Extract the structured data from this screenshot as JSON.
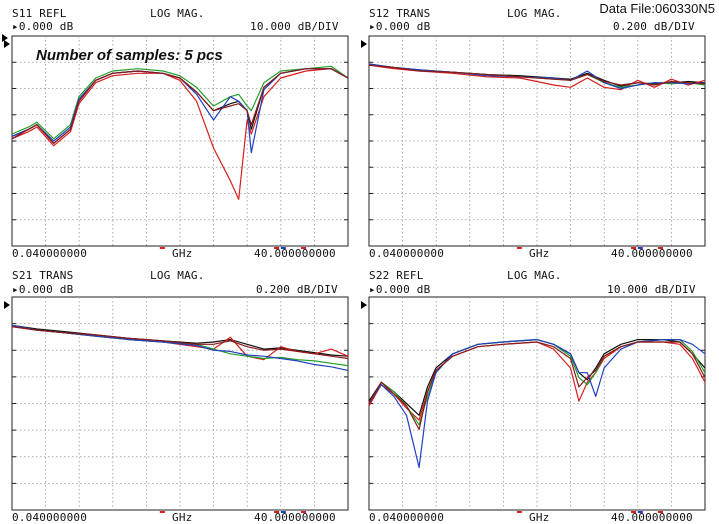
{
  "data_file": "Data File:060330N5",
  "note": "Number of samples: 5 pcs",
  "series_colors": [
    "#111111",
    "#d81e1e",
    "#22a02c",
    "#2040c0",
    "#8a1a1a"
  ],
  "chart_data": [
    {
      "type": "line",
      "param": "S11 REFL",
      "format": "LOG MAG.",
      "ref": "▸0.000 dB",
      "scale": "10.000 dB/DIV",
      "x_start": "0.040000000",
      "x_unit": "GHz",
      "x_stop": "40.000000000",
      "xlim": [
        0.04,
        40
      ],
      "ylim": [
        -80,
        10
      ],
      "x": [
        0.04,
        2,
        3,
        5,
        7,
        8,
        10,
        12,
        15,
        18,
        20,
        22,
        24,
        26,
        27,
        28,
        28.5,
        30,
        32,
        35,
        38,
        40
      ],
      "series": [
        {
          "color": "#111111",
          "values": [
            -33,
            -30,
            -28,
            -36,
            -30,
            -18,
            -9,
            -6,
            -5,
            -6,
            -8,
            -14,
            -22,
            -19,
            -18,
            -22,
            -30,
            -12,
            -6,
            -4,
            -4,
            -8
          ]
        },
        {
          "color": "#d81e1e",
          "values": [
            -34,
            -31,
            -29,
            -37,
            -31,
            -19,
            -10,
            -7,
            -6,
            -6,
            -9,
            -18,
            -38,
            -52,
            -60,
            -26,
            -32,
            -16,
            -8,
            -5,
            -4,
            -8
          ]
        },
        {
          "color": "#22a02c",
          "values": [
            -32,
            -29,
            -27,
            -34,
            -28,
            -16,
            -8,
            -5,
            -4,
            -5,
            -7,
            -12,
            -20,
            -16,
            -15,
            -20,
            -22,
            -10,
            -5,
            -4,
            -3,
            -8
          ]
        },
        {
          "color": "#2040c0",
          "values": [
            -33,
            -30,
            -28,
            -35,
            -29,
            -17,
            -9,
            -6,
            -5,
            -6,
            -8,
            -15,
            -26,
            -16,
            -18,
            -22,
            -40,
            -13,
            -6,
            -4,
            -4,
            -8
          ]
        },
        {
          "color": "#8a1a1a",
          "values": [
            -34,
            -30,
            -28,
            -36,
            -30,
            -18,
            -9,
            -6,
            -5,
            -6,
            -8,
            -14,
            -22,
            -20,
            -19,
            -22,
            -28,
            -12,
            -6,
            -4,
            -4,
            -8
          ]
        }
      ]
    },
    {
      "type": "line",
      "param": "S12 TRANS",
      "format": "LOG MAG.",
      "ref": "▸0.000 dB",
      "scale": "0.200 dB/DIV",
      "x_start": "0.040000000",
      "x_unit": "GHz",
      "x_stop": "40.000000000",
      "xlim": [
        0.04,
        40
      ],
      "ylim": [
        -1.6,
        0.2
      ],
      "x": [
        0.04,
        3,
        6,
        10,
        14,
        18,
        22,
        24,
        26,
        28,
        30,
        32,
        34,
        36,
        38,
        40
      ],
      "series": [
        {
          "color": "#111111",
          "values": [
            -0.04,
            -0.07,
            -0.09,
            -0.11,
            -0.13,
            -0.14,
            -0.16,
            -0.17,
            -0.12,
            -0.18,
            -0.23,
            -0.2,
            -0.21,
            -0.2,
            -0.19,
            -0.2
          ]
        },
        {
          "color": "#d81e1e",
          "values": [
            -0.05,
            -0.08,
            -0.1,
            -0.12,
            -0.15,
            -0.16,
            -0.22,
            -0.24,
            -0.16,
            -0.24,
            -0.26,
            -0.18,
            -0.24,
            -0.17,
            -0.22,
            -0.18
          ]
        },
        {
          "color": "#22a02c",
          "values": [
            -0.04,
            -0.07,
            -0.09,
            -0.11,
            -0.13,
            -0.15,
            -0.17,
            -0.18,
            -0.13,
            -0.2,
            -0.24,
            -0.22,
            -0.2,
            -0.21,
            -0.2,
            -0.22
          ]
        },
        {
          "color": "#2040c0",
          "values": [
            -0.04,
            -0.07,
            -0.09,
            -0.11,
            -0.14,
            -0.15,
            -0.16,
            -0.18,
            -0.1,
            -0.2,
            -0.25,
            -0.22,
            -0.2,
            -0.2,
            -0.21,
            -0.2
          ]
        },
        {
          "color": "#8a1a1a",
          "values": [
            -0.05,
            -0.07,
            -0.1,
            -0.11,
            -0.13,
            -0.15,
            -0.17,
            -0.18,
            -0.13,
            -0.19,
            -0.22,
            -0.2,
            -0.22,
            -0.19,
            -0.2,
            -0.21
          ]
        }
      ]
    },
    {
      "type": "line",
      "param": "S21 TRANS",
      "format": "LOG MAG.",
      "ref": "▸0.000 dB",
      "scale": "0.200 dB/DIV",
      "x_start": "0.040000000",
      "x_unit": "GHz",
      "x_stop": "40.000000000",
      "xlim": [
        0.04,
        40
      ],
      "ylim": [
        -1.6,
        0.2
      ],
      "x": [
        0.04,
        3,
        6,
        10,
        14,
        18,
        22,
        24,
        26,
        28,
        30,
        32,
        34,
        36,
        38,
        40
      ],
      "series": [
        {
          "color": "#111111",
          "values": [
            -0.04,
            -0.07,
            -0.09,
            -0.12,
            -0.15,
            -0.17,
            -0.19,
            -0.18,
            -0.16,
            -0.2,
            -0.24,
            -0.23,
            -0.25,
            -0.27,
            -0.29,
            -0.3
          ]
        },
        {
          "color": "#d81e1e",
          "values": [
            -0.05,
            -0.08,
            -0.1,
            -0.13,
            -0.16,
            -0.18,
            -0.22,
            -0.24,
            -0.14,
            -0.3,
            -0.33,
            -0.22,
            -0.26,
            -0.28,
            -0.24,
            -0.3
          ]
        },
        {
          "color": "#22a02c",
          "values": [
            -0.04,
            -0.08,
            -0.1,
            -0.13,
            -0.16,
            -0.18,
            -0.2,
            -0.24,
            -0.28,
            -0.3,
            -0.32,
            -0.31,
            -0.33,
            -0.34,
            -0.36,
            -0.38
          ]
        },
        {
          "color": "#2040c0",
          "values": [
            -0.04,
            -0.08,
            -0.1,
            -0.13,
            -0.16,
            -0.18,
            -0.21,
            -0.25,
            -0.26,
            -0.29,
            -0.3,
            -0.32,
            -0.34,
            -0.37,
            -0.39,
            -0.42
          ]
        },
        {
          "color": "#8a1a1a",
          "values": [
            -0.05,
            -0.08,
            -0.1,
            -0.12,
            -0.15,
            -0.17,
            -0.2,
            -0.2,
            -0.17,
            -0.22,
            -0.25,
            -0.24,
            -0.26,
            -0.28,
            -0.3,
            -0.32
          ]
        }
      ]
    },
    {
      "type": "line",
      "param": "S22 REFL",
      "format": "LOG MAG.",
      "ref": "▸0.000 dB",
      "scale": "10.000 dB/DIV",
      "x_start": "0.040000000",
      "x_unit": "GHz",
      "x_stop": "40.000000000",
      "xlim": [
        0.04,
        40
      ],
      "ylim": [
        -80,
        10
      ],
      "x": [
        0.04,
        1.5,
        3,
        4.5,
        6,
        7,
        8,
        10,
        13,
        16,
        20,
        22,
        24,
        25,
        26,
        27,
        28,
        30,
        32,
        35,
        37,
        38.5,
        40
      ],
      "series": [
        {
          "color": "#111111",
          "values": [
            -34,
            -26,
            -30,
            -35,
            -40,
            -28,
            -20,
            -14,
            -10,
            -9,
            -8,
            -10,
            -14,
            -22,
            -25,
            -20,
            -14,
            -10,
            -8,
            -8,
            -9,
            -14,
            -20
          ]
        },
        {
          "color": "#d81e1e",
          "values": [
            -36,
            -27,
            -31,
            -37,
            -42,
            -30,
            -21,
            -15,
            -11,
            -10,
            -9,
            -12,
            -20,
            -34,
            -26,
            -22,
            -16,
            -11,
            -9,
            -9,
            -10,
            -16,
            -26
          ]
        },
        {
          "color": "#22a02c",
          "values": [
            -35,
            -26,
            -30,
            -36,
            -44,
            -32,
            -22,
            -14,
            -10,
            -9,
            -8,
            -10,
            -15,
            -24,
            -27,
            -22,
            -15,
            -11,
            -9,
            -8,
            -8,
            -13,
            -22
          ]
        },
        {
          "color": "#2040c0",
          "values": [
            -35,
            -27,
            -32,
            -40,
            -62,
            -34,
            -22,
            -14,
            -10,
            -9,
            -8,
            -10,
            -14,
            -22,
            -22,
            -32,
            -20,
            -12,
            -9,
            -8,
            -8,
            -10,
            -14
          ]
        },
        {
          "color": "#8a1a1a",
          "values": [
            -35,
            -26,
            -31,
            -36,
            -46,
            -30,
            -21,
            -15,
            -11,
            -10,
            -9,
            -11,
            -16,
            -28,
            -24,
            -21,
            -15,
            -11,
            -9,
            -9,
            -9,
            -14,
            -24
          ]
        }
      ]
    }
  ]
}
